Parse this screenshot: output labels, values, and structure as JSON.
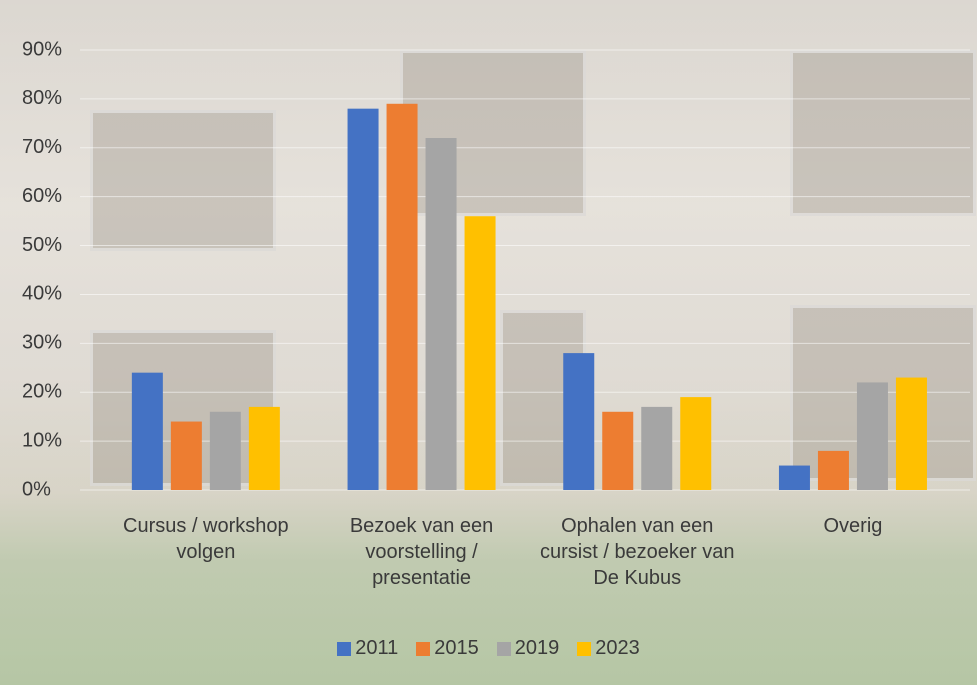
{
  "chart_data": {
    "type": "bar",
    "categories": [
      "Cursus / workshop volgen",
      "Bezoek van een voorstelling / presentatie",
      "Ophalen van een cursist / bezoeker van De Kubus",
      "Overig"
    ],
    "series": [
      {
        "name": "2011",
        "color": "#4472c4",
        "values": [
          24,
          78,
          28,
          5
        ]
      },
      {
        "name": "2015",
        "color": "#ed7d31",
        "values": [
          14,
          79,
          16,
          8
        ]
      },
      {
        "name": "2019",
        "color": "#a5a5a5",
        "values": [
          16,
          72,
          17,
          22
        ]
      },
      {
        "name": "2023",
        "color": "#ffc000",
        "values": [
          17,
          56,
          19,
          23
        ]
      }
    ],
    "ylim": [
      0,
      90
    ],
    "yticks": [
      {
        "value": 0,
        "label": "0%"
      },
      {
        "value": 10,
        "label": "10%"
      },
      {
        "value": 20,
        "label": "20%"
      },
      {
        "value": 30,
        "label": "30%"
      },
      {
        "value": 40,
        "label": "40%"
      },
      {
        "value": 50,
        "label": "50%"
      },
      {
        "value": 60,
        "label": "60%"
      },
      {
        "value": 70,
        "label": "70%"
      },
      {
        "value": 80,
        "label": "80%"
      },
      {
        "value": 90,
        "label": "90%"
      }
    ],
    "grid": true,
    "legend": "bottom"
  }
}
